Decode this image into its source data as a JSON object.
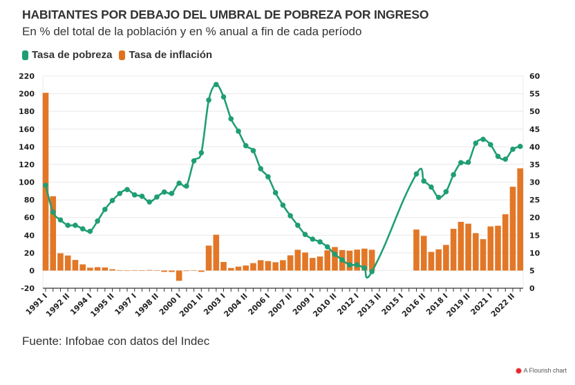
{
  "title": "HABITANTES POR DEBAJO DEL UMBRAL DE POBREZA POR INGRESO",
  "subtitle": "En % del total de la población y en % anual a fin de cada período",
  "source": "Fuente: Infobae con datos del Indec",
  "credit": "A Flourish chart",
  "colors": {
    "pobreza": "#1f9e73",
    "inflacion": "#e0701b",
    "grid": "#e8e8e8",
    "axis": "#333333"
  },
  "chart_data": {
    "type": "bar+line",
    "title": "HABITANTES POR DEBAJO DEL UMBRAL DE POBREZA POR INGRESO",
    "subtitle": "En % del total de la población y en % anual a fin de cada período",
    "legend_position": "top-left",
    "grid": true,
    "left_axis": {
      "series": "Tasa de inflación",
      "ylim": [
        -20,
        220
      ],
      "ticks": [
        -20,
        0,
        20,
        40,
        60,
        80,
        100,
        120,
        140,
        160,
        180,
        200,
        220
      ]
    },
    "right_axis": {
      "series": "Tasa de pobreza",
      "ylim": [
        0,
        60
      ],
      "ticks": [
        0,
        5,
        10,
        15,
        20,
        25,
        30,
        35,
        40,
        45,
        50,
        55,
        60
      ]
    },
    "x_tick_labels": [
      "1991 I",
      "1992 II",
      "1994 I",
      "1995 II",
      "1997 I",
      "1998 II",
      "2000 I",
      "2001 II",
      "2003 I",
      "2004 II",
      "2006 I",
      "2007 II",
      "2009 I",
      "2010 II",
      "2012 I",
      "2013 II",
      "2015 I",
      "2016 II",
      "2018 I",
      "2019 II",
      "2021 I",
      "2022 II"
    ],
    "x_tick_every": 3,
    "x": [
      "1991 I",
      "1991 II",
      "1992 I",
      "1992 II",
      "1993 I",
      "1993 II",
      "1994 I",
      "1994 II",
      "1995 I",
      "1995 II",
      "1996 I",
      "1996 II",
      "1997 I",
      "1997 II",
      "1998 I",
      "1998 II",
      "1999 I",
      "1999 II",
      "2000 I",
      "2000 II",
      "2001 I",
      "2001 II",
      "2002 I",
      "2002 II",
      "2003 I",
      "2003 II",
      "2004 I",
      "2004 II",
      "2005 I",
      "2005 II",
      "2006 I",
      "2006 II",
      "2007 I",
      "2007 II",
      "2008 I",
      "2008 II",
      "2009 I",
      "2009 II",
      "2010 I",
      "2010 II",
      "2011 I",
      "2011 II",
      "2012 I",
      "2012 II",
      "2013 I",
      "2013 II",
      "2014 I",
      "2014 II",
      "2015 I",
      "2015 II",
      "2016 I",
      "2016 II",
      "2017 I",
      "2017 II",
      "2018 I",
      "2018 II",
      "2019 I",
      "2019 II",
      "2020 I",
      "2020 II",
      "2021 I",
      "2021 II",
      "2022 I",
      "2022 II",
      "2023 I"
    ],
    "series": [
      {
        "name": "Tasa de pobreza",
        "type": "line",
        "axis": "right",
        "values": [
          29.1,
          21.5,
          19.3,
          17.8,
          17.8,
          16.8,
          16.1,
          19.0,
          22.3,
          24.8,
          26.8,
          27.9,
          26.4,
          26.0,
          24.4,
          25.8,
          27.2,
          26.8,
          29.7,
          28.9,
          36.0,
          38.3,
          53.2,
          57.6,
          54.1,
          47.9,
          44.4,
          40.3,
          38.9,
          33.8,
          31.5,
          27.0,
          23.5,
          20.5,
          17.8,
          15.2,
          13.9,
          13.1,
          11.7,
          9.6,
          8.0,
          6.6,
          6.6,
          5.7,
          4.7,
          null,
          null,
          null,
          null,
          null,
          32.3,
          30.3,
          28.6,
          25.7,
          27.3,
          32.1,
          35.5,
          35.6,
          41.0,
          42.1,
          40.6,
          37.3,
          36.5,
          39.3,
          40.1
        ]
      },
      {
        "name": "Tasa de inflación",
        "type": "bar",
        "axis": "left",
        "values": [
          201,
          84,
          19.5,
          17,
          12,
          7,
          3.2,
          3.8,
          3.5,
          1.5,
          0,
          0,
          0.4,
          0,
          0.6,
          0.3,
          -1.5,
          -1.6,
          -11.6,
          -0.6,
          0,
          -1.5,
          28.2,
          40.5,
          9.7,
          2.9,
          4.4,
          5.7,
          8.4,
          11.7,
          10.7,
          9.4,
          11.7,
          17.2,
          23.5,
          20.4,
          14.3,
          15.9,
          22.9,
          26.6,
          23.2,
          22.5,
          23.7,
          24.8,
          23.5,
          null,
          null,
          null,
          null,
          null,
          46.4,
          39.2,
          21.1,
          24.0,
          29.0,
          47.2,
          55.1,
          53.0,
          42.3,
          35.5,
          49.9,
          50.7,
          63.7,
          94.8,
          115.6
        ]
      }
    ]
  },
  "legend": [
    {
      "label": "Tasa de pobreza",
      "color": "#1f9e73"
    },
    {
      "label": "Tasa de inflación",
      "color": "#e0701b"
    }
  ]
}
